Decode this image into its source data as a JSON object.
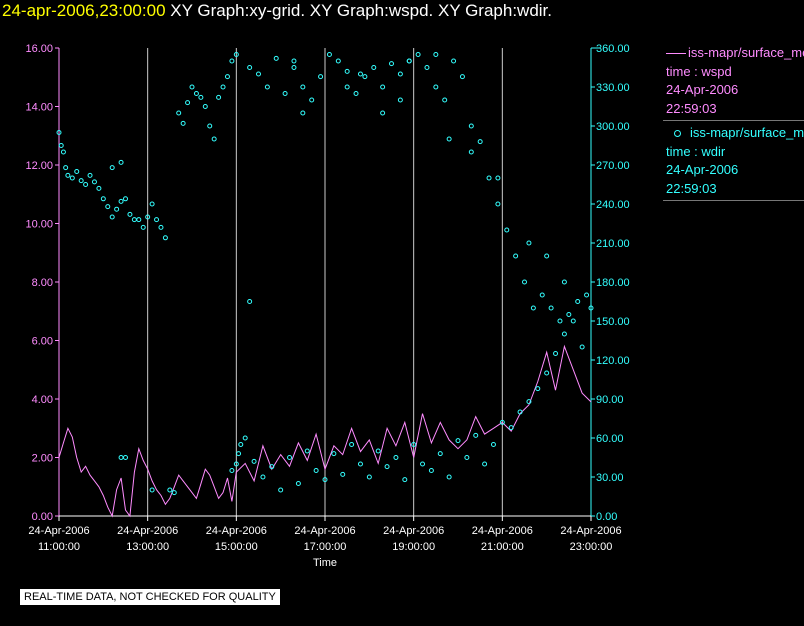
{
  "header": {
    "timestamp": "24-apr-2006,23:00:00",
    "graphs": "XY Graph:xy-grid.  XY Graph:wspd.  XY Graph:wdir."
  },
  "legend": [
    {
      "series": "iss-mapr/surface_met",
      "var": "time : wspd",
      "date": "24-Apr-2006",
      "time": "22:59:03"
    },
    {
      "series": "iss-mapr/surface_met",
      "var": "time : wdir",
      "date": "24-Apr-2006",
      "time": "22:59:03"
    }
  ],
  "disclaimer": "REAL-TIME DATA, NOT CHECKED FOR QUALITY",
  "colors": {
    "wspd": "#ff8cff",
    "wdir": "#33ffff",
    "grid": "#cccccc",
    "axis": "#ffffff",
    "title_time": "#ffff00"
  },
  "chart_data": {
    "type": "line",
    "xlabel": "Time",
    "xlim": [
      11,
      23
    ],
    "x_ticks": [
      {
        "x": 11,
        "label": [
          "24-Apr-2006",
          "11:00:00"
        ]
      },
      {
        "x": 13,
        "label": [
          "24-Apr-2006",
          "13:00:00"
        ]
      },
      {
        "x": 15,
        "label": [
          "24-Apr-2006",
          "15:00:00"
        ]
      },
      {
        "x": 17,
        "label": [
          "24-Apr-2006",
          "17:00:00"
        ]
      },
      {
        "x": 19,
        "label": [
          "24-Apr-2006",
          "19:00:00"
        ]
      },
      {
        "x": 21,
        "label": [
          "24-Apr-2006",
          "21:00:00"
        ]
      },
      {
        "x": 23,
        "label": [
          "24-Apr-2006",
          "23:00:00"
        ]
      }
    ],
    "y_left": {
      "ticks": [
        "0.00",
        "2.00",
        "4.00",
        "6.00",
        "8.00",
        "10.00",
        "12.00",
        "14.00",
        "16.00"
      ],
      "range": [
        0,
        16
      ]
    },
    "y_right": {
      "ticks": [
        "0.00",
        "30.00",
        "60.00",
        "90.00",
        "120.00",
        "150.00",
        "180.00",
        "210.00",
        "240.00",
        "270.00",
        "300.00",
        "330.00",
        "360.00"
      ],
      "range": [
        0,
        360
      ]
    },
    "series": [
      {
        "name": "time : wspd",
        "axis": "left",
        "kind": "line",
        "x": [
          11.0,
          11.1,
          11.2,
          11.3,
          11.4,
          11.5,
          11.6,
          11.7,
          11.8,
          11.9,
          12.0,
          12.1,
          12.2,
          12.3,
          12.4,
          12.5,
          12.6,
          12.7,
          12.8,
          12.9,
          13.0,
          13.1,
          13.2,
          13.3,
          13.4,
          13.5,
          13.6,
          13.7,
          13.8,
          13.9,
          14.0,
          14.1,
          14.2,
          14.3,
          14.4,
          14.5,
          14.6,
          14.7,
          14.8,
          14.9,
          15.0,
          15.2,
          15.4,
          15.6,
          15.8,
          16.0,
          16.2,
          16.4,
          16.6,
          16.8,
          17.0,
          17.2,
          17.4,
          17.6,
          17.8,
          18.0,
          18.2,
          18.4,
          18.6,
          18.8,
          19.0,
          19.2,
          19.4,
          19.6,
          19.8,
          20.0,
          20.2,
          20.4,
          20.6,
          20.8,
          21.0,
          21.2,
          21.4,
          21.6,
          21.8,
          22.0,
          22.2,
          22.4,
          22.6,
          22.8,
          23.0
        ],
        "y": [
          2.0,
          2.5,
          3.0,
          2.7,
          2.0,
          1.5,
          1.7,
          1.4,
          1.2,
          1.0,
          0.7,
          0.3,
          0.0,
          0.9,
          1.3,
          0.2,
          0.0,
          1.5,
          2.3,
          1.9,
          1.6,
          1.2,
          0.9,
          0.7,
          0.4,
          0.6,
          1.0,
          1.4,
          1.2,
          1.0,
          0.8,
          0.6,
          1.1,
          1.6,
          1.4,
          1.0,
          0.6,
          0.8,
          1.3,
          0.5,
          1.5,
          1.8,
          1.2,
          2.4,
          1.6,
          2.1,
          1.7,
          2.5,
          1.9,
          2.8,
          1.6,
          2.4,
          2.1,
          3.0,
          2.2,
          2.6,
          1.8,
          3.0,
          2.4,
          3.2,
          2.0,
          3.5,
          2.5,
          3.2,
          2.6,
          2.3,
          2.6,
          3.4,
          2.8,
          3.0,
          3.2,
          2.9,
          3.5,
          3.8,
          4.6,
          5.6,
          4.3,
          5.8,
          5.0,
          4.2,
          3.9
        ]
      },
      {
        "name": "time : wdir",
        "axis": "right",
        "kind": "scatter",
        "x": [
          11.0,
          11.05,
          11.1,
          11.15,
          11.2,
          11.3,
          11.4,
          11.5,
          11.6,
          11.7,
          11.8,
          11.9,
          12.0,
          12.1,
          12.2,
          12.3,
          12.4,
          12.5,
          12.6,
          12.7,
          12.8,
          12.9,
          13.0,
          13.1,
          13.2,
          13.3,
          13.4,
          12.2,
          12.4,
          13.7,
          13.8,
          13.9,
          14.0,
          14.1,
          14.2,
          14.3,
          14.4,
          14.5,
          14.6,
          14.7,
          14.8,
          14.9,
          15.0,
          15.3,
          15.5,
          15.7,
          15.9,
          16.1,
          16.3,
          16.5,
          16.7,
          16.9,
          17.1,
          17.3,
          17.5,
          17.7,
          17.9,
          18.1,
          18.3,
          18.5,
          18.7,
          18.9,
          19.1,
          19.3,
          19.5,
          19.7,
          19.9,
          20.1,
          20.3,
          20.5,
          20.7,
          20.9,
          21.1,
          21.3,
          21.5,
          21.7,
          21.9,
          22.1,
          22.3,
          22.5,
          22.7,
          22.9,
          14.9,
          15.0,
          15.05,
          15.1,
          15.2,
          15.4,
          15.6,
          15.8,
          16.0,
          16.2,
          16.4,
          16.6,
          16.8,
          17.0,
          17.2,
          17.4,
          17.6,
          17.8,
          18.0,
          18.2,
          18.4,
          18.6,
          18.8,
          19.0,
          19.2,
          19.4,
          19.6,
          19.8,
          20.0,
          20.2,
          20.4,
          20.6,
          20.8,
          21.0,
          21.2,
          21.4,
          21.6,
          21.8,
          22.0,
          22.2,
          22.4,
          22.6,
          22.8,
          23.0,
          13.1,
          13.5,
          13.6,
          12.4,
          12.5,
          15.3,
          16.5,
          17.5,
          18.3,
          18.9,
          19.5,
          20.3,
          16.3,
          17.8,
          18.7,
          19.8,
          20.9,
          21.6,
          22.0,
          22.4
        ],
        "y": [
          295,
          285,
          280,
          268,
          262,
          260,
          265,
          258,
          255,
          262,
          257,
          252,
          244,
          238,
          230,
          236,
          242,
          244,
          232,
          228,
          228,
          222,
          230,
          240,
          228,
          222,
          214,
          268,
          272,
          310,
          302,
          318,
          330,
          325,
          322,
          315,
          300,
          290,
          322,
          330,
          338,
          350,
          355,
          345,
          340,
          330,
          352,
          325,
          345,
          330,
          320,
          338,
          355,
          350,
          342,
          325,
          338,
          345,
          330,
          348,
          340,
          350,
          355,
          345,
          355,
          320,
          350,
          338,
          300,
          288,
          260,
          240,
          220,
          200,
          180,
          160,
          170,
          160,
          150,
          155,
          165,
          170,
          35,
          40,
          48,
          55,
          60,
          42,
          30,
          38,
          20,
          45,
          25,
          50,
          35,
          28,
          48,
          32,
          55,
          40,
          30,
          50,
          38,
          45,
          28,
          55,
          40,
          35,
          48,
          30,
          58,
          45,
          62,
          40,
          55,
          72,
          68,
          80,
          88,
          98,
          110,
          125,
          140,
          150,
          130,
          160,
          20,
          20,
          18,
          45,
          45,
          165,
          310,
          330,
          310,
          350,
          330,
          280,
          350,
          340,
          320,
          290,
          260,
          210,
          200,
          180
        ]
      }
    ]
  }
}
